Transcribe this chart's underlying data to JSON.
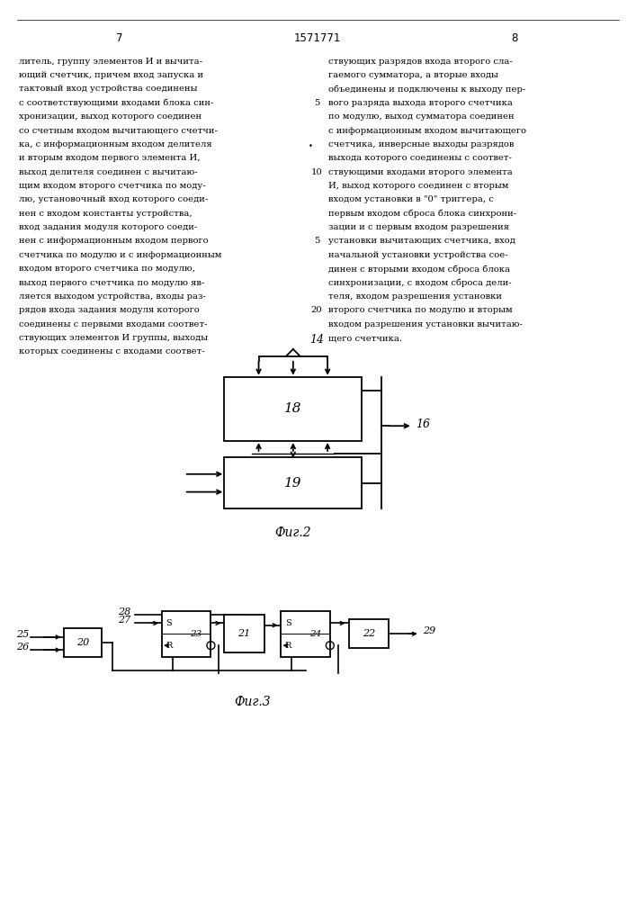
{
  "page_width": 7.07,
  "page_height": 10.0,
  "bg_color": "#ffffff",
  "header_text": "1571771",
  "page_left": "7",
  "page_right": "8",
  "text_left": [
    "литель, группу элементов И и вычита-",
    "ющий счетчик, причем вход запуска и",
    "тактовый вход устройства соединены",
    "с соответствующими входами блока син-",
    "хронизации, выход которого соединен",
    "со счетным входом вычитающего счетчи-",
    "ка, с информационным входом делителя",
    "и вторым входом первого элемента И,",
    "выход делителя соединен с вычитаю-",
    "щим входом второго счетчика по моду-",
    "лю, установочный вход которого соеди-",
    "нен с входом константы устройства,",
    "вход задания модуля которого соеди-",
    "нен с информационным входом первого",
    "счетчика по модулю и с информационным",
    "входом второго счетчика по модулю,",
    "выход первого счетчика по модулю яв-",
    "ляется выходом устройства, входы раз-",
    "рядов входа задания модуля которого",
    "соединены с первыми входами соответ-",
    "ствующих элементов И группы, выходы",
    "которых соединены с входами соответ-"
  ],
  "text_right": [
    "ствующих разрядов входа второго сла-",
    "гаемого сумматора, а вторые входы",
    "объединены и подключены к выходу пер-",
    "вого разряда выхода второго счетчика",
    "по модулю, выход сумматора соединен",
    "с информационным входом вычитающего",
    "счетчика, инверсные выходы разрядов",
    "выхода которого соединены с соответ-",
    "ствующими входами второго элемента",
    "И, выход которого соединен с вторым",
    "входом установки в \"0\" триггера, с",
    "первым входом сброса блока синхрони-",
    "зации и с первым входом разрешения",
    "установки вычитающих счетчика, вход",
    "начальной установки устройства сое-",
    "динен с вторыми входом сброса блока",
    "синхронизации, с входом сброса дели-",
    "теля, входом разрешения установки",
    "второго счетчика по модулю и вторым",
    "входом разрешения установки вычитаю-",
    "щего счетчика."
  ],
  "line_numbers": {
    "3": "5",
    "8": "10",
    "13": "5",
    "18": "20"
  },
  "fig2_label": "Фиг.2",
  "fig3_label": "Фиг.3"
}
